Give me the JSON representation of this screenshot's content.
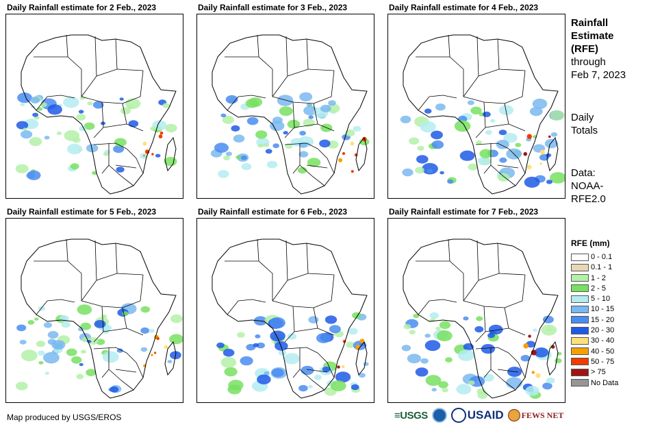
{
  "panels": [
    {
      "title": "Daily Rainfall estimate for 2 Feb., 2023"
    },
    {
      "title": "Daily Rainfall estimate for 3 Feb., 2023"
    },
    {
      "title": "Daily Rainfall estimate for 4 Feb., 2023"
    },
    {
      "title": "Daily Rainfall estimate for 5 Feb., 2023"
    },
    {
      "title": "Daily Rainfall estimate for 6 Feb., 2023"
    },
    {
      "title": "Daily Rainfall estimate for 7 Feb., 2023"
    }
  ],
  "sidebar": {
    "title_line1": "Rainfall",
    "title_line2": "Estimate",
    "title_line3": "(RFE)",
    "through": "through",
    "date": "Feb 7, 2023",
    "totals_line1": "Daily",
    "totals_line2": "Totals",
    "data_line1": "Data:",
    "data_line2": "NOAA-",
    "data_line3": "RFE2.0"
  },
  "legend": {
    "title": "RFE (mm)",
    "items": [
      {
        "label": "0 - 0.1",
        "color": "#ffffff"
      },
      {
        "label": "0.1 - 1",
        "color": "#e8d7b5"
      },
      {
        "label": "1 - 2",
        "color": "#b4f0a8"
      },
      {
        "label": "2 - 5",
        "color": "#78e060"
      },
      {
        "label": "5 - 10",
        "color": "#b4ecf0"
      },
      {
        "label": "10 - 15",
        "color": "#7ab8f0"
      },
      {
        "label": "15 - 20",
        "color": "#4a8cf0"
      },
      {
        "label": "20 - 30",
        "color": "#1e5ae6"
      },
      {
        "label": "30 - 40",
        "color": "#fce07a"
      },
      {
        "label": "40 - 50",
        "color": "#f5a000"
      },
      {
        "label": "50 - 75",
        "color": "#f03c00"
      },
      {
        "label": "> 75",
        "color": "#a01414"
      },
      {
        "label": "No Data",
        "color": "#969696"
      }
    ]
  },
  "footer": {
    "credit": "Map produced by USGS/EROS"
  },
  "logos": {
    "usgs": "≡USGS",
    "usaid": "USAID",
    "fews": "FEWS NET"
  }
}
